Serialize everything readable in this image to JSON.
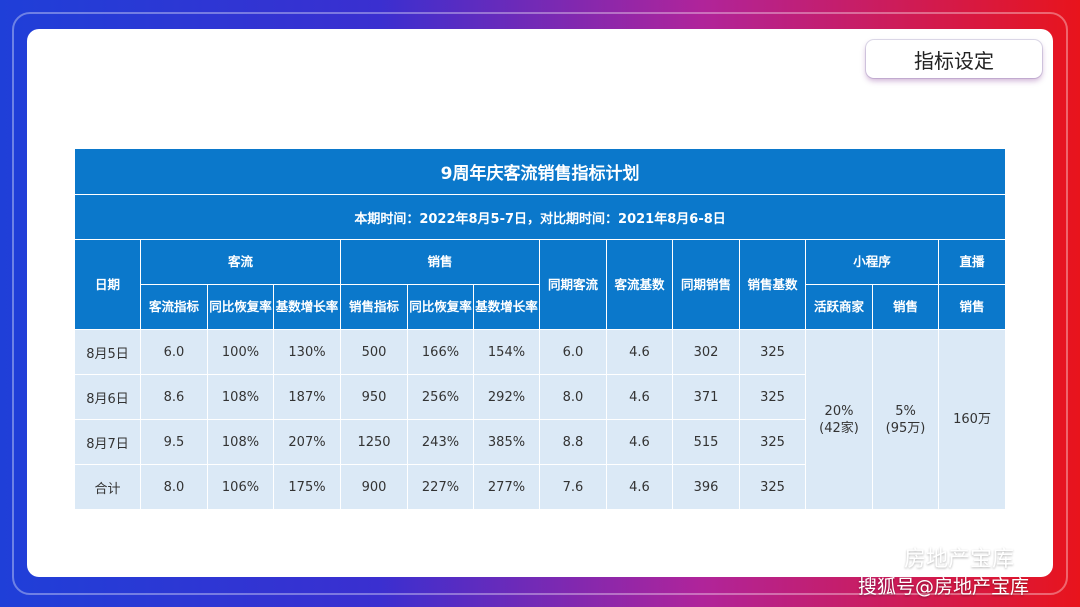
{
  "tag_label": "指标设定",
  "table": {
    "title": "9周年庆客流销售指标计划",
    "subtitle": "本期时间：2022年8月5-7日，对比期时间：2021年8月6-8日",
    "headers": {
      "date": "日期",
      "traffic": "客流",
      "sales": "销售",
      "prev_traffic": "同期客流",
      "traffic_base": "客流基数",
      "prev_sales": "同期销售",
      "sales_base": "销售基数",
      "mini_program": "小程序",
      "live": "直播",
      "traffic_target": "客流指标",
      "traffic_yoy_recovery": "同比恢复率",
      "traffic_base_growth": "基数增长率",
      "sales_target": "销售指标",
      "sales_yoy_recovery": "同比恢复率",
      "sales_base_growth": "基数增长率",
      "active_merchants": "活跃商家",
      "mini_sales": "销售",
      "live_sales": "销售"
    },
    "rows": [
      {
        "date": "8月5日",
        "traffic_target": "6.0",
        "traffic_yoy": "100%",
        "traffic_growth": "130%",
        "sales_target": "500",
        "sales_yoy": "166%",
        "sales_growth": "154%",
        "prev_traffic": "6.0",
        "traffic_base": "4.6",
        "prev_sales": "302",
        "sales_base": "325"
      },
      {
        "date": "8月6日",
        "traffic_target": "8.6",
        "traffic_yoy": "108%",
        "traffic_growth": "187%",
        "sales_target": "950",
        "sales_yoy": "256%",
        "sales_growth": "292%",
        "prev_traffic": "8.0",
        "traffic_base": "4.6",
        "prev_sales": "371",
        "sales_base": "325"
      },
      {
        "date": "8月7日",
        "traffic_target": "9.5",
        "traffic_yoy": "108%",
        "traffic_growth": "207%",
        "sales_target": "1250",
        "sales_yoy": "243%",
        "sales_growth": "385%",
        "prev_traffic": "8.8",
        "traffic_base": "4.6",
        "prev_sales": "515",
        "sales_base": "325"
      },
      {
        "date": "合计",
        "traffic_target": "8.0",
        "traffic_yoy": "106%",
        "traffic_growth": "175%",
        "sales_target": "900",
        "sales_yoy": "227%",
        "sales_growth": "277%",
        "prev_traffic": "7.6",
        "traffic_base": "4.6",
        "prev_sales": "396",
        "sales_base": "325"
      }
    ],
    "merged": {
      "active_merchants_pct": "20%",
      "active_merchants_count": "(42家)",
      "mini_sales_pct": "5%",
      "mini_sales_amount": "(95万)",
      "live_sales": "160万"
    }
  },
  "watermark": {
    "line1": "房地产宝库",
    "line2": "搜狐号@房地产宝库"
  }
}
